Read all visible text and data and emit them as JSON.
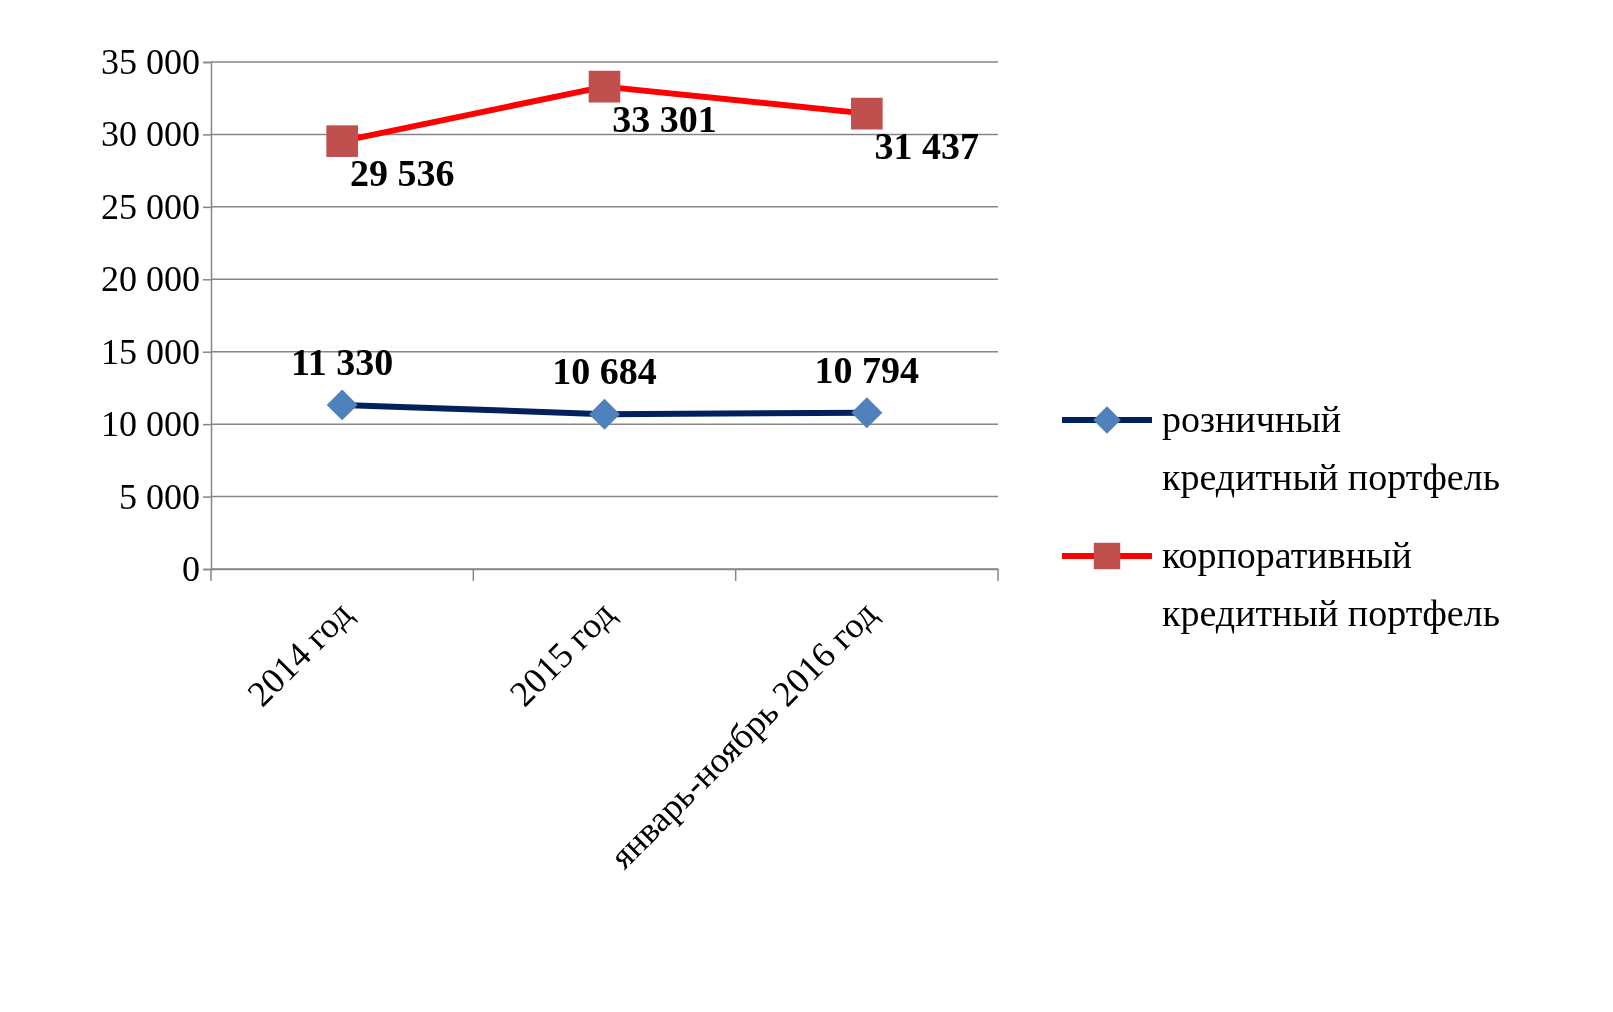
{
  "chart_data": {
    "type": "line",
    "categories": [
      "2014 год",
      "2015 год",
      "январь-ноябрь 2016 год"
    ],
    "series": [
      {
        "name": "розничный кредитный портфель",
        "color": "#002060",
        "colors": [
          "#4f81bd",
          "#4f81bd",
          "#4f81bd"
        ],
        "marker": "diamond",
        "values": [
          11330,
          10684,
          10794
        ]
      },
      {
        "name": "корпоративный кредитный портфель",
        "color": "#ff0000",
        "colors": [
          "#c0504d",
          "#c0504d",
          "#c0504d"
        ],
        "marker": "square",
        "values": [
          29536,
          33301,
          31437
        ]
      }
    ],
    "ylim": [
      0,
      35000
    ],
    "yticks": [
      {
        "value": 0,
        "label": "0"
      },
      {
        "value": 5000,
        "label": "5 000"
      },
      {
        "value": 10000,
        "label": "10 000"
      },
      {
        "value": 15000,
        "label": "15 000"
      },
      {
        "value": 20000,
        "label": "20 000"
      },
      {
        "value": 25000,
        "label": "25 000"
      },
      {
        "value": 30000,
        "label": "30 000"
      },
      {
        "value": 35000,
        "label": "35 000"
      }
    ],
    "grid": "y",
    "legend": "right",
    "data_labels": true,
    "line_style": "solid"
  }
}
